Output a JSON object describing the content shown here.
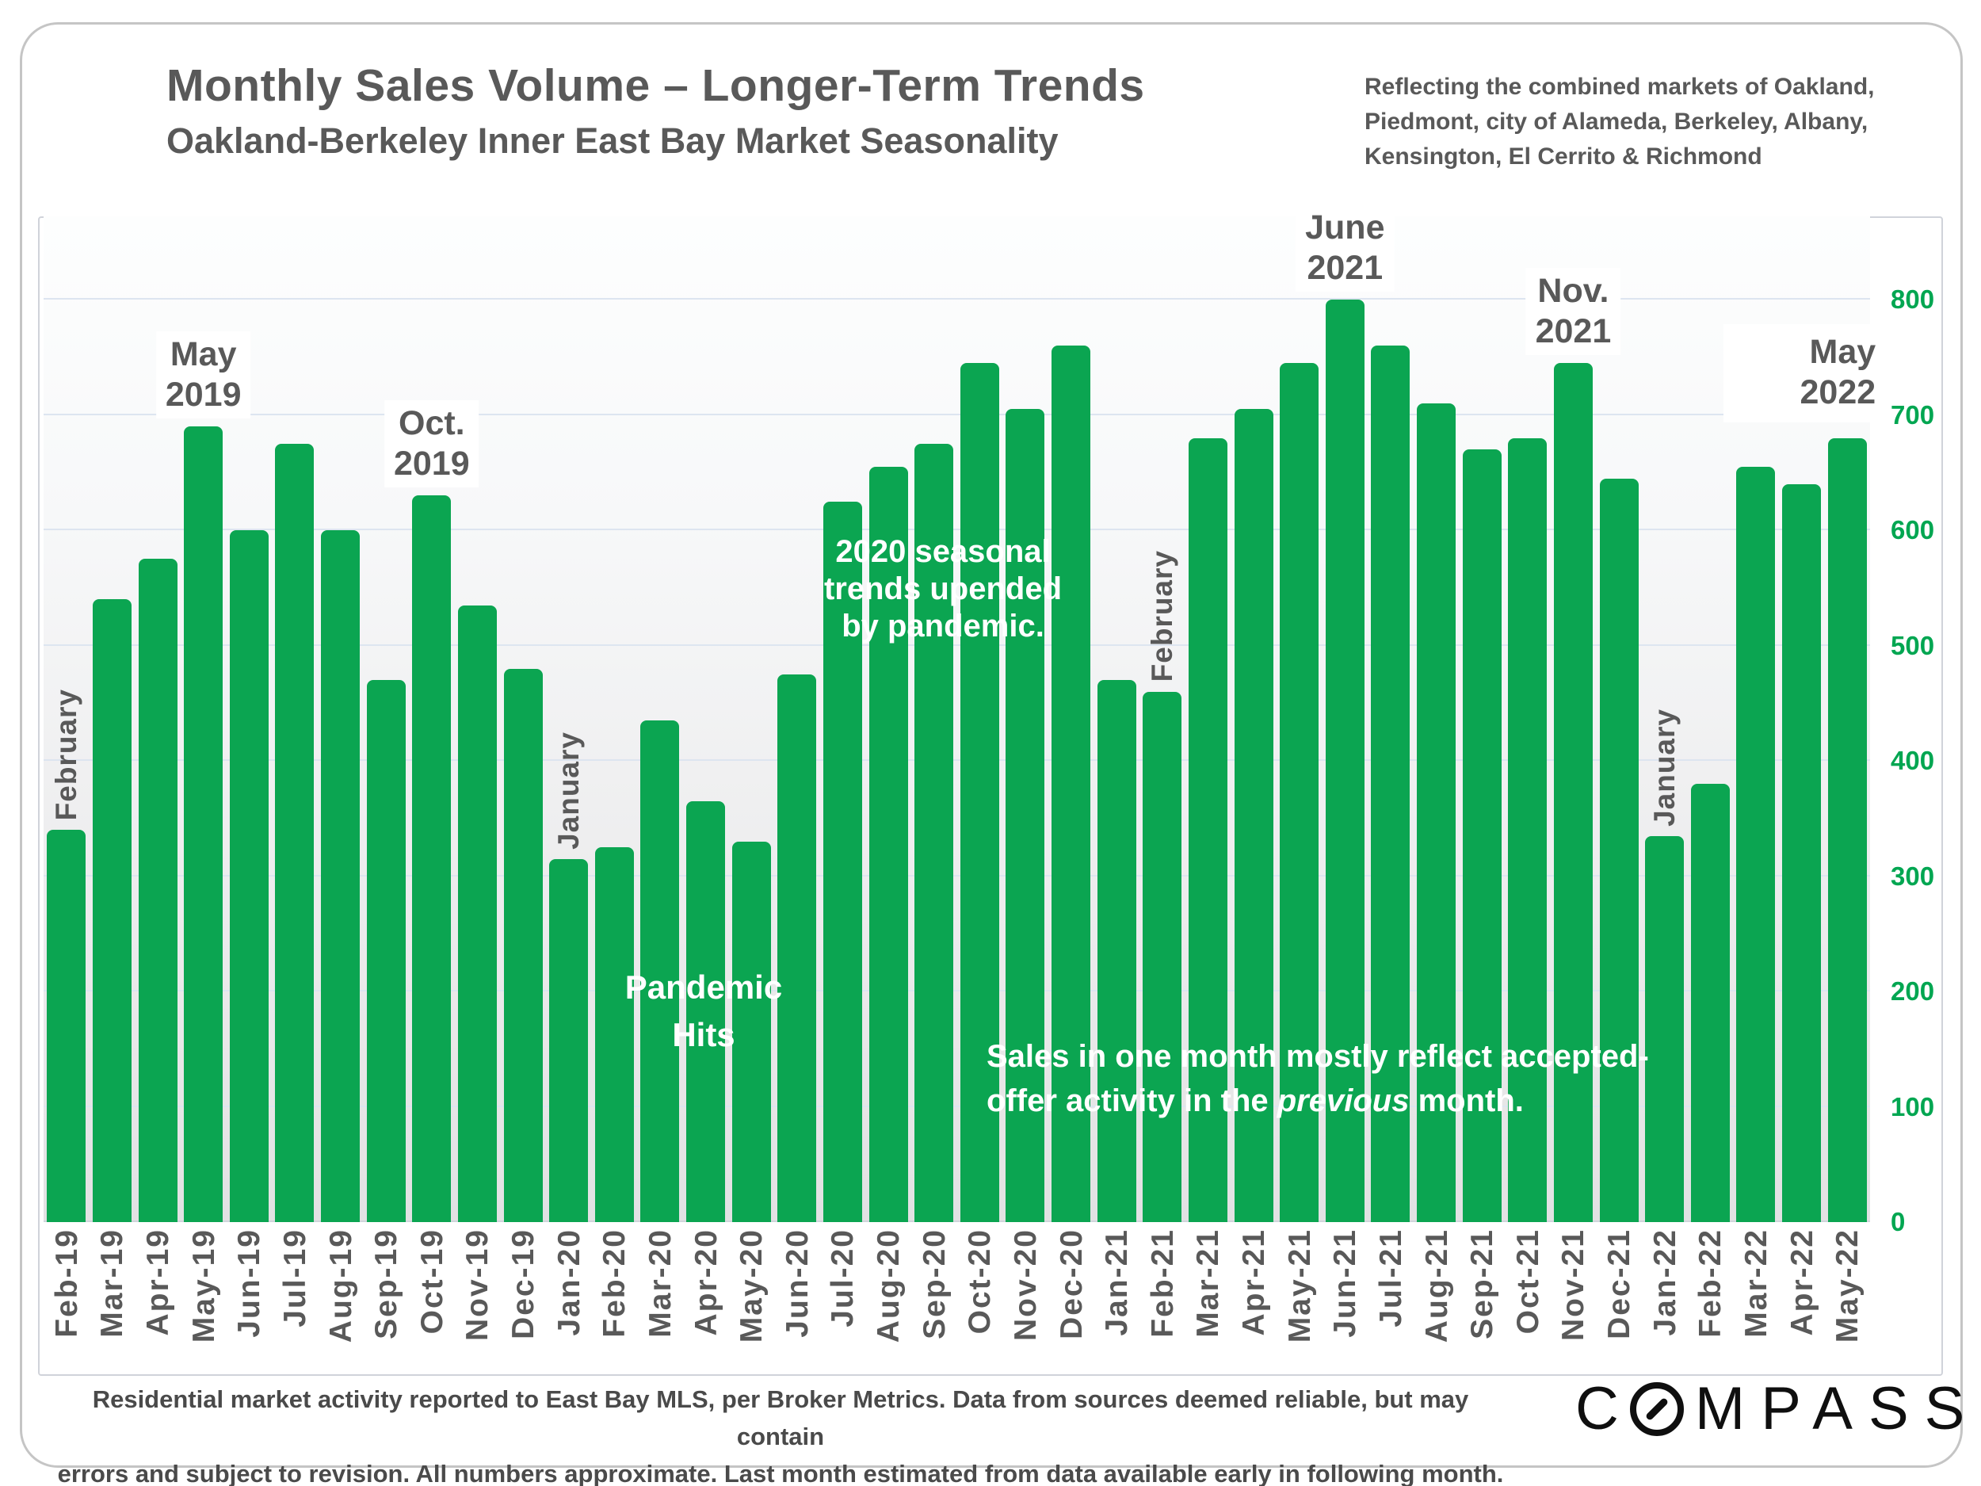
{
  "page": {
    "title": "Monthly Sales Volume – Longer-Term Trends",
    "subtitle": "Oakland-Berkeley Inner East Bay Market Seasonality",
    "market_note": "Reflecting the combined markets of Oakland, Piedmont, city of Alameda, Berkeley, Albany, Kensington, El Cerrito & Richmond",
    "footer_line1": "Residential market activity reported to East Bay MLS, per Broker Metrics. Data from sources deemed reliable, but may contain",
    "footer_line2": "errors and subject to revision. All numbers approximate. Last month estimated from data available early in following month.",
    "logo_text": "COMPASS"
  },
  "colors": {
    "bar_green": "#0BA551",
    "axis_label_green": "#00A651",
    "text_gray": "#595959",
    "gridline": "#dde5f0"
  },
  "chart_data": {
    "type": "bar",
    "title": "Monthly Sales Volume – Longer-Term Trends",
    "subtitle": "Oakland-Berkeley Inner East Bay Market Seasonality",
    "xlabel": "",
    "ylabel": "",
    "ylim": [
      0,
      800
    ],
    "yticks": [
      0,
      100,
      200,
      300,
      400,
      500,
      600,
      700,
      800
    ],
    "grid": true,
    "legend": "none",
    "categories": [
      "Feb-19",
      "Mar-19",
      "Apr-19",
      "May-19",
      "Jun-19",
      "Jul-19",
      "Aug-19",
      "Sep-19",
      "Oct-19",
      "Nov-19",
      "Dec-19",
      "Jan-20",
      "Feb-20",
      "Mar-20",
      "Apr-20",
      "May-20",
      "Jun-20",
      "Jul-20",
      "Aug-20",
      "Sep-20",
      "Oct-20",
      "Nov-20",
      "Dec-20",
      "Jan-21",
      "Feb-21",
      "Mar-21",
      "Apr-21",
      "May-21",
      "Jun-21",
      "Jul-21",
      "Aug-21",
      "Sep-21",
      "Oct-21",
      "Nov-21",
      "Dec-21",
      "Jan-22",
      "Feb-22",
      "Mar-22",
      "Apr-22",
      "May-22"
    ],
    "values": [
      340,
      540,
      575,
      690,
      600,
      675,
      600,
      470,
      630,
      535,
      480,
      315,
      325,
      435,
      365,
      330,
      475,
      625,
      655,
      675,
      745,
      705,
      760,
      470,
      460,
      680,
      705,
      745,
      800,
      760,
      710,
      670,
      680,
      745,
      645,
      335,
      380,
      655,
      640,
      680
    ]
  },
  "annotations": {
    "above_bar": [
      {
        "lines": [
          "May",
          "2019"
        ],
        "bar": "May-19",
        "boxed": false
      },
      {
        "lines": [
          "Oct.",
          "2019"
        ],
        "bar": "Oct-19",
        "boxed": false
      },
      {
        "lines": [
          "June",
          "2021"
        ],
        "bar": "Jun-21",
        "boxed": false
      },
      {
        "lines": [
          "Nov.",
          "2021"
        ],
        "bar": "Nov-21",
        "boxed": false
      },
      {
        "lines": [
          "May",
          "2022"
        ],
        "bar": "May-22",
        "boxed": true
      }
    ],
    "rotated_month": [
      {
        "text": "February",
        "bar": "Feb-19"
      },
      {
        "text": "January",
        "bar": "Jan-20"
      },
      {
        "text": "February",
        "bar": "Feb-21"
      },
      {
        "text": "January",
        "bar": "Jan-22"
      }
    ],
    "callouts": [
      {
        "name": "pandemic-hits",
        "lines": [
          "Pandemic",
          "Hits"
        ]
      },
      {
        "name": "seasonal-2020",
        "lines": [
          "2020 seasonal",
          "trends upended",
          "by pandemic."
        ]
      },
      {
        "name": "sales-note",
        "lines": [
          "Sales in one month mostly reflect accepted-",
          [
            "offer activity in the ",
            {
              "italic": "previous"
            },
            " month."
          ]
        ]
      }
    ]
  }
}
